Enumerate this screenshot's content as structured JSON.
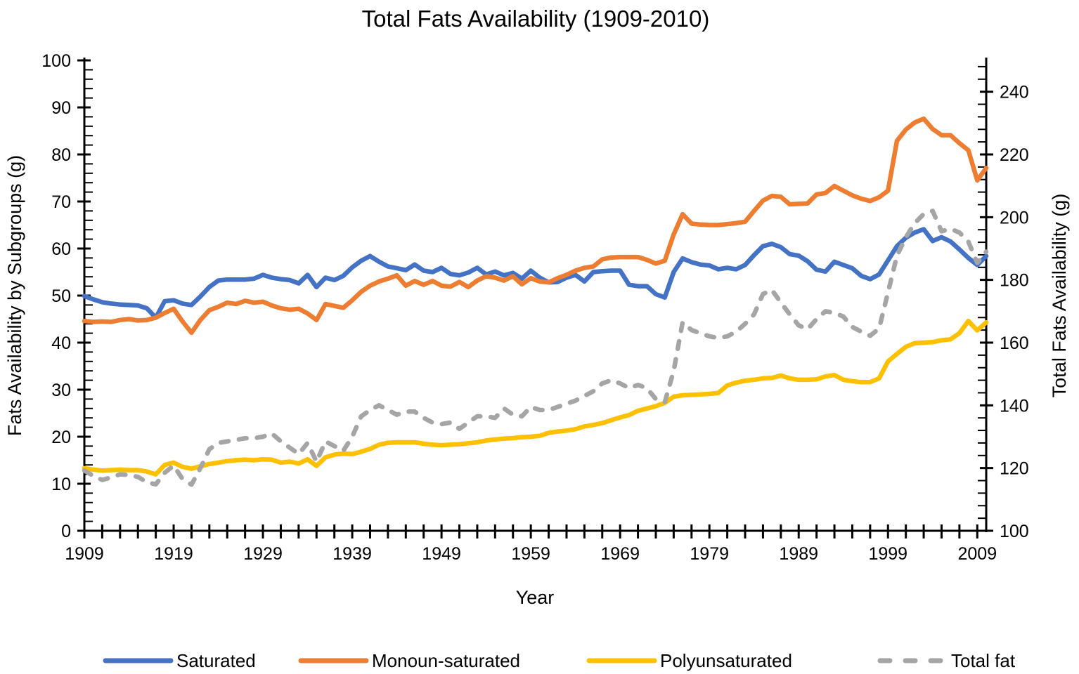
{
  "title": "Total Fats Availability (1909-2010)",
  "axes": {
    "x_label": "Year",
    "y_left_label": "Fats Availability by Subgroups (g)",
    "y_right_label": "Total Fats Availability (g)",
    "x_ticks": [
      1909,
      1919,
      1929,
      1939,
      1949,
      1959,
      1969,
      1979,
      1989,
      1999,
      2009
    ],
    "y_left_ticks": [
      0,
      10,
      20,
      30,
      40,
      50,
      60,
      70,
      80,
      90,
      100
    ],
    "y_right_ticks": [
      100,
      120,
      140,
      160,
      180,
      200,
      220,
      240
    ]
  },
  "colors": {
    "saturated": "#4472C4",
    "monounsaturated": "#ED7D31",
    "polyunsaturated": "#FFC000",
    "total_fat": "#A5A5A5",
    "axis": "#000000"
  },
  "chart_data": {
    "type": "line",
    "title": "Total Fats Availability (1909-2010)",
    "xlabel": "Year",
    "ylabel_left": "Fats Availability by Subgroups (g)",
    "ylabel_right": "Total Fats Availability (g)",
    "years": {
      "start": 1909,
      "end": 2010,
      "step": 1
    },
    "y_left_range": [
      0,
      100
    ],
    "y_right_range": [
      100,
      250
    ],
    "x_minor_tick_step_years": 2,
    "y_left_minor_step": 2,
    "y_right_minor_step": 4,
    "grid": false,
    "legend_position": "bottom",
    "series": [
      {
        "name": "Saturated",
        "color": "#4472C4",
        "axis": "left",
        "style": "solid",
        "values": [
          49.9,
          49.2,
          48.6,
          48.3,
          48.1,
          48.0,
          47.9,
          47.3,
          45.3,
          48.8,
          49.0,
          48.3,
          48.0,
          49.8,
          51.8,
          53.2,
          53.4,
          53.4,
          53.4,
          53.6,
          54.4,
          53.8,
          53.5,
          53.3,
          52.6,
          54.4,
          51.8,
          53.8,
          53.3,
          54.2,
          56.0,
          57.4,
          58.4,
          57.2,
          56.2,
          55.8,
          55.4,
          56.6,
          55.3,
          55.0,
          55.9,
          54.6,
          54.3,
          54.9,
          55.9,
          54.5,
          55.1,
          54.3,
          54.8,
          53.6,
          55.3,
          53.8,
          52.8,
          52.9,
          53.8,
          54.4,
          53.0,
          55.0,
          55.2,
          55.3,
          55.3,
          52.3,
          52.0,
          52.0,
          50.3,
          49.6,
          55.0,
          57.9,
          57.1,
          56.6,
          56.4,
          55.6,
          55.9,
          55.6,
          56.5,
          58.6,
          60.5,
          61.0,
          60.3,
          58.8,
          58.5,
          57.3,
          55.5,
          55.1,
          57.2,
          56.5,
          55.8,
          54.2,
          53.5,
          54.5,
          57.5,
          60.5,
          62.3,
          63.4,
          64.1,
          61.6,
          62.4,
          61.5,
          59.8,
          58.0,
          56.5,
          58.4
        ]
      },
      {
        "name": "Monoun-saturated",
        "color": "#ED7D31",
        "axis": "left",
        "style": "solid",
        "values": [
          44.6,
          44.4,
          44.5,
          44.4,
          44.8,
          45.0,
          44.7,
          44.8,
          45.3,
          46.3,
          47.2,
          44.5,
          42.1,
          44.8,
          46.9,
          47.6,
          48.5,
          48.2,
          48.9,
          48.5,
          48.7,
          47.9,
          47.3,
          47.0,
          47.2,
          46.2,
          44.8,
          48.2,
          47.8,
          47.4,
          49.0,
          50.8,
          52.1,
          53.0,
          53.6,
          54.3,
          52.1,
          53.1,
          52.3,
          53.1,
          52.1,
          51.9,
          52.9,
          51.8,
          53.2,
          54.1,
          53.8,
          53.2,
          54.1,
          52.4,
          53.7,
          53.0,
          52.8,
          53.7,
          54.4,
          55.3,
          55.9,
          56.2,
          57.7,
          58.1,
          58.2,
          58.2,
          58.2,
          57.6,
          56.8,
          57.4,
          63.0,
          67.3,
          65.3,
          65.1,
          65.0,
          65.0,
          65.2,
          65.4,
          65.7,
          68.0,
          70.2,
          71.2,
          71.0,
          69.4,
          69.5,
          69.6,
          71.5,
          71.8,
          73.3,
          72.3,
          71.3,
          70.6,
          70.1,
          70.9,
          72.3,
          82.9,
          85.3,
          86.8,
          87.6,
          85.4,
          84.1,
          84.1,
          82.4,
          80.9,
          74.5,
          77.1
        ]
      },
      {
        "name": "Polyunsaturated",
        "color": "#FFC000",
        "axis": "left",
        "style": "solid",
        "values": [
          13.3,
          13.0,
          12.8,
          12.9,
          13.0,
          12.9,
          12.9,
          12.6,
          12.0,
          14.0,
          14.5,
          13.6,
          13.2,
          13.7,
          14.2,
          14.5,
          14.8,
          15.0,
          15.1,
          15.0,
          15.2,
          15.1,
          14.5,
          14.7,
          14.3,
          15.2,
          13.8,
          15.6,
          16.2,
          16.4,
          16.3,
          16.8,
          17.4,
          18.3,
          18.7,
          18.8,
          18.8,
          18.8,
          18.5,
          18.3,
          18.2,
          18.3,
          18.4,
          18.6,
          18.8,
          19.2,
          19.4,
          19.6,
          19.7,
          19.9,
          20.0,
          20.2,
          20.8,
          21.1,
          21.3,
          21.6,
          22.2,
          22.5,
          22.9,
          23.5,
          24.1,
          24.6,
          25.5,
          26.0,
          26.5,
          27.2,
          28.5,
          28.8,
          28.9,
          29.0,
          29.1,
          29.3,
          30.9,
          31.5,
          31.9,
          32.1,
          32.4,
          32.5,
          33.0,
          32.4,
          32.1,
          32.1,
          32.2,
          32.8,
          33.1,
          32.1,
          31.8,
          31.6,
          31.6,
          32.4,
          36.0,
          37.6,
          39.1,
          39.9,
          40.0,
          40.1,
          40.5,
          40.7,
          42.0,
          44.6,
          42.6,
          44.3
        ]
      },
      {
        "name": "Total fat",
        "color": "#A5A5A5",
        "axis": "right",
        "style": "dashed",
        "values": [
          119.2,
          117.5,
          116.2,
          117.0,
          118.0,
          117.8,
          117.2,
          115.5,
          114.8,
          118.5,
          120.8,
          116.5,
          114.7,
          120.0,
          126.0,
          128.0,
          128.5,
          129.0,
          129.5,
          129.5,
          130.0,
          131.0,
          128.5,
          126.5,
          124.5,
          128.0,
          122.0,
          128.5,
          127.0,
          125.5,
          130.0,
          136.5,
          138.5,
          140.0,
          138.5,
          137.0,
          138.0,
          138.0,
          136.0,
          134.5,
          134.0,
          134.5,
          132.5,
          134.5,
          136.5,
          136.5,
          136.0,
          139.0,
          137.0,
          136.5,
          139.5,
          138.5,
          138.5,
          139.5,
          140.5,
          141.5,
          143.0,
          144.5,
          147.0,
          148.0,
          147.0,
          145.5,
          146.5,
          145.5,
          142.0,
          141.0,
          151.0,
          166.5,
          164.0,
          163.0,
          162.0,
          161.5,
          162.0,
          163.5,
          166.0,
          169.0,
          175.5,
          176.8,
          172.8,
          169.0,
          165.5,
          164.3,
          167.5,
          170.0,
          169.5,
          168.3,
          165.0,
          163.5,
          162.2,
          164.5,
          176.0,
          187.7,
          193.6,
          198.1,
          201.0,
          202.0,
          195.5,
          196.3,
          195.1,
          192.2,
          185.4,
          189.0
        ]
      }
    ]
  }
}
